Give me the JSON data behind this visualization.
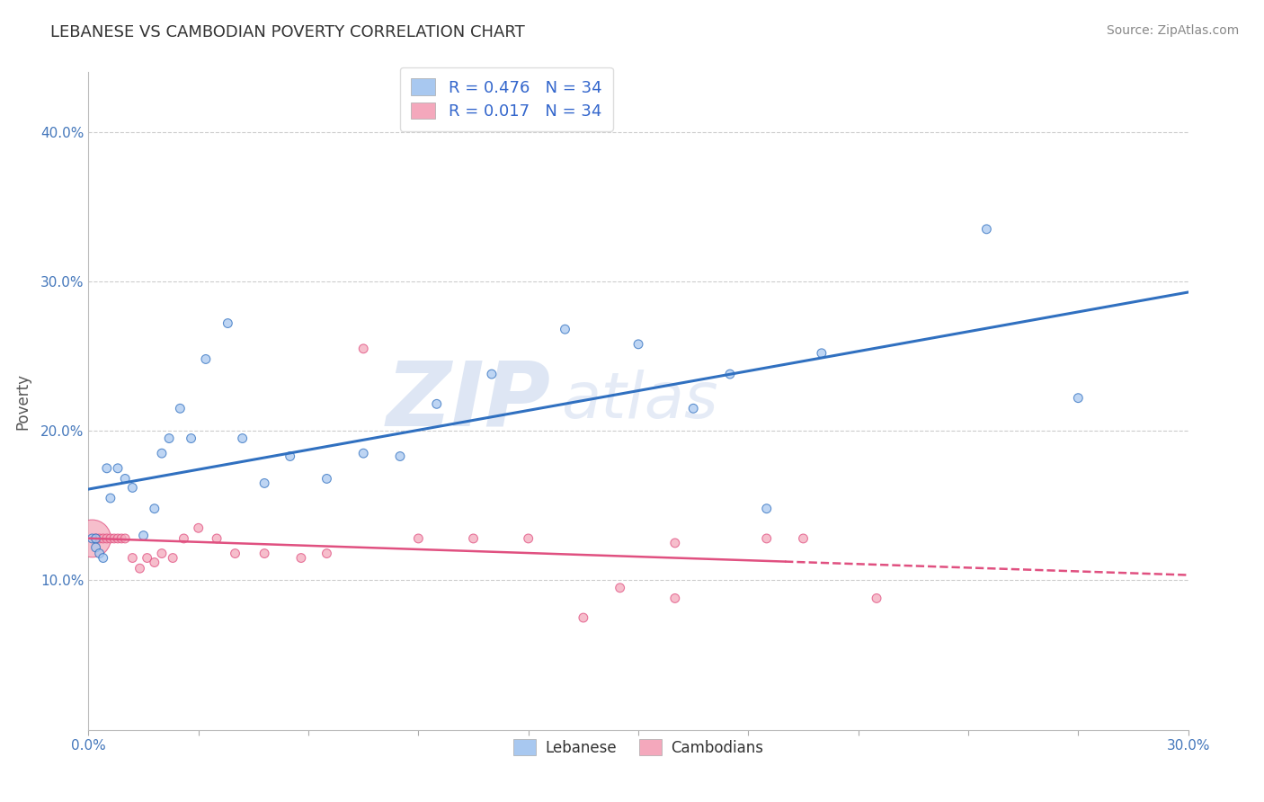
{
  "title": "LEBANESE VS CAMBODIAN POVERTY CORRELATION CHART",
  "source": "Source: ZipAtlas.com",
  "ylabel": "Poverty",
  "ylim": [
    0.0,
    0.44
  ],
  "xlim": [
    0.0,
    0.3
  ],
  "yticks": [
    0.1,
    0.2,
    0.3,
    0.4
  ],
  "ytick_labels": [
    "10.0%",
    "20.0%",
    "30.0%",
    "40.0%"
  ],
  "color_blue": "#A8C8F0",
  "color_pink": "#F4A8BC",
  "line_blue": "#3070C0",
  "line_pink": "#E05080",
  "watermark_zip": "ZIP",
  "watermark_atlas": "atlas",
  "lebanese_x": [
    0.001,
    0.002,
    0.002,
    0.003,
    0.004,
    0.005,
    0.006,
    0.008,
    0.01,
    0.012,
    0.015,
    0.018,
    0.02,
    0.022,
    0.025,
    0.028,
    0.032,
    0.038,
    0.042,
    0.048,
    0.055,
    0.065,
    0.075,
    0.085,
    0.095,
    0.11,
    0.13,
    0.15,
    0.165,
    0.175,
    0.185,
    0.2,
    0.245,
    0.27
  ],
  "lebanese_y": [
    0.128,
    0.128,
    0.122,
    0.118,
    0.115,
    0.175,
    0.155,
    0.175,
    0.168,
    0.162,
    0.13,
    0.148,
    0.185,
    0.195,
    0.215,
    0.195,
    0.248,
    0.272,
    0.195,
    0.165,
    0.183,
    0.168,
    0.185,
    0.183,
    0.218,
    0.238,
    0.268,
    0.258,
    0.215,
    0.238,
    0.148,
    0.252,
    0.335,
    0.222
  ],
  "cambodian_x": [
    0.001,
    0.002,
    0.003,
    0.004,
    0.005,
    0.006,
    0.007,
    0.008,
    0.009,
    0.01,
    0.012,
    0.014,
    0.016,
    0.018,
    0.02,
    0.023,
    0.026,
    0.03,
    0.035,
    0.04,
    0.048,
    0.058,
    0.065,
    0.075,
    0.09,
    0.105,
    0.12,
    0.145,
    0.16,
    0.185,
    0.195,
    0.215,
    0.135,
    0.16
  ],
  "cambodian_y": [
    0.128,
    0.128,
    0.128,
    0.128,
    0.128,
    0.128,
    0.128,
    0.128,
    0.128,
    0.128,
    0.115,
    0.108,
    0.115,
    0.112,
    0.118,
    0.115,
    0.128,
    0.135,
    0.128,
    0.118,
    0.118,
    0.115,
    0.118,
    0.255,
    0.128,
    0.128,
    0.128,
    0.095,
    0.125,
    0.128,
    0.128,
    0.088,
    0.075,
    0.088
  ],
  "lebanese_sizes_raw": [
    50,
    50,
    50,
    50,
    50,
    50,
    50,
    50,
    50,
    50,
    50,
    50,
    50,
    50,
    50,
    50,
    50,
    50,
    50,
    50,
    50,
    50,
    50,
    50,
    50,
    50,
    50,
    50,
    50,
    50,
    50,
    50,
    50,
    50
  ],
  "cambodian_sizes_raw": [
    900,
    50,
    50,
    50,
    50,
    50,
    50,
    50,
    50,
    50,
    50,
    50,
    50,
    50,
    50,
    50,
    50,
    50,
    50,
    50,
    50,
    50,
    50,
    50,
    50,
    50,
    50,
    50,
    50,
    50,
    50,
    50,
    50,
    50
  ],
  "leb_R": 0.476,
  "cam_R": 0.017,
  "N": 34
}
